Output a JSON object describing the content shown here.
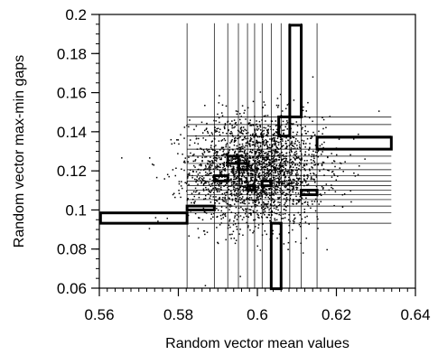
{
  "chart_data": {
    "type": "scatter",
    "title": "",
    "xlabel": "Random vector mean values",
    "ylabel": "Random vector max-min gaps",
    "xlim": [
      0.56,
      0.64
    ],
    "ylim": [
      0.06,
      0.2
    ],
    "x_ticks": [
      0.56,
      0.58,
      0.6,
      0.62,
      0.64
    ],
    "x_tick_labels": [
      "0.56",
      "0.58",
      "0.6",
      "0.62",
      "0.64"
    ],
    "y_ticks": [
      0.06,
      0.08,
      0.1,
      0.12,
      0.14,
      0.16,
      0.18,
      0.2
    ],
    "y_tick_labels": [
      "0.06",
      "0.08",
      "0.1",
      "0.12",
      "0.14",
      "0.16",
      "0.18",
      "0.2"
    ],
    "grid": false,
    "legend": "none",
    "points": {
      "count": 2500,
      "distribution": "bivariate normal",
      "x_mean": 0.6,
      "x_std": 0.0085,
      "y_mean": 0.12,
      "y_std": 0.014
    },
    "vertical_lines_x": [
      0.5822,
      0.5891,
      0.5925,
      0.5952,
      0.5975,
      0.5993,
      0.6012,
      0.6035,
      0.606,
      0.6082,
      0.6111,
      0.6151
    ],
    "horizontal_lines_y": [
      0.0932,
      0.0985,
      0.102,
      0.1053,
      0.1078,
      0.1101,
      0.1124,
      0.1148,
      0.1175,
      0.1206,
      0.1238,
      0.1275,
      0.1311,
      0.1378,
      0.1437,
      0.1476
    ],
    "line_span": {
      "x_min": 0.5822,
      "x_max": 0.6339,
      "y_min": 0.0597,
      "y_max": 0.1955
    },
    "boxes": [
      {
        "x0": 0.5603,
        "x1": 0.5822,
        "y0": 0.0932,
        "y1": 0.0985
      },
      {
        "x0": 0.6151,
        "x1": 0.6339,
        "y0": 0.1311,
        "y1": 0.1372
      },
      {
        "x0": 0.6035,
        "x1": 0.606,
        "y0": 0.0597,
        "y1": 0.0932
      },
      {
        "x0": 0.6082,
        "x1": 0.6111,
        "y0": 0.1476,
        "y1": 0.1945
      },
      {
        "x0": 0.6054,
        "x1": 0.6082,
        "y0": 0.1378,
        "y1": 0.1476
      },
      {
        "x0": 0.5822,
        "x1": 0.5891,
        "y0": 0.1,
        "y1": 0.102
      },
      {
        "x0": 0.5891,
        "x1": 0.5925,
        "y0": 0.1148,
        "y1": 0.1175
      },
      {
        "x0": 0.5925,
        "x1": 0.5952,
        "y0": 0.1238,
        "y1": 0.1275
      },
      {
        "x0": 0.5975,
        "x1": 0.5993,
        "y0": 0.1101,
        "y1": 0.1124
      },
      {
        "x0": 0.6012,
        "x1": 0.6035,
        "y0": 0.1124,
        "y1": 0.1148
      },
      {
        "x0": 0.6111,
        "x1": 0.6151,
        "y0": 0.1078,
        "y1": 0.1101
      },
      {
        "x0": 0.5952,
        "x1": 0.5975,
        "y0": 0.1206,
        "y1": 0.1238
      }
    ]
  }
}
